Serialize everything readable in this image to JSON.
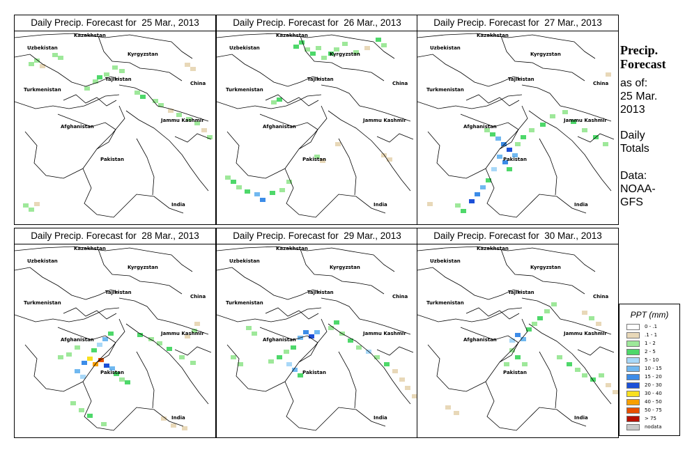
{
  "sidebar": {
    "title_line1": "Precip.",
    "title_line2": "Forecast",
    "asof_line1": "as of:",
    "asof_line2": "25 Mar.",
    "asof_line3": "2013",
    "totals_line1": "Daily",
    "totals_line2": "Totals",
    "data_line1": "Data:",
    "data_line2": "NOAA-",
    "data_line3": "GFS"
  },
  "panels": [
    {
      "title": "Daily Precip. Forecast for  25 Mar., 2013"
    },
    {
      "title": "Daily Precip. Forecast for  26 Mar., 2013"
    },
    {
      "title": "Daily Precip. Forecast for  27 Mar., 2013"
    },
    {
      "title": "Daily Precip. Forecast for  28 Mar., 2013"
    },
    {
      "title": "Daily Precip. Forecast for  29 Mar., 2013"
    },
    {
      "title": "Daily Precip. Forecast for  30 Mar., 2013"
    }
  ],
  "map_labels": [
    "Kazakhstan",
    "Uzbekistan",
    "Kyrgyzstan",
    "Tajikistan",
    "Turkmenistan",
    "China",
    "Afghanistan",
    "Jammu Kashmir",
    "Pakistan",
    "India"
  ],
  "legend": {
    "title": "PPT (mm)",
    "items": [
      {
        "label": "0 - .1",
        "color": "#ffffff"
      },
      {
        "label": ".1 - 1",
        "color": "#e8d8b8"
      },
      {
        "label": "1 - 2",
        "color": "#9ee89a"
      },
      {
        "label": "2 - 5",
        "color": "#4ed86a"
      },
      {
        "label": "5 - 10",
        "color": "#a8d8f8"
      },
      {
        "label": "10 - 15",
        "color": "#70b8f0"
      },
      {
        "label": "15 - 20",
        "color": "#3c8ce8"
      },
      {
        "label": "20 - 30",
        "color": "#1c50d8"
      },
      {
        "label": "30 - 40",
        "color": "#f8e020"
      },
      {
        "label": "40 - 50",
        "color": "#f8a000"
      },
      {
        "label": "50 - 75",
        "color": "#e85000"
      },
      {
        "label": "> 75",
        "color": "#b81000"
      },
      {
        "label": "nodata",
        "color": "#c8c8c8"
      }
    ]
  }
}
